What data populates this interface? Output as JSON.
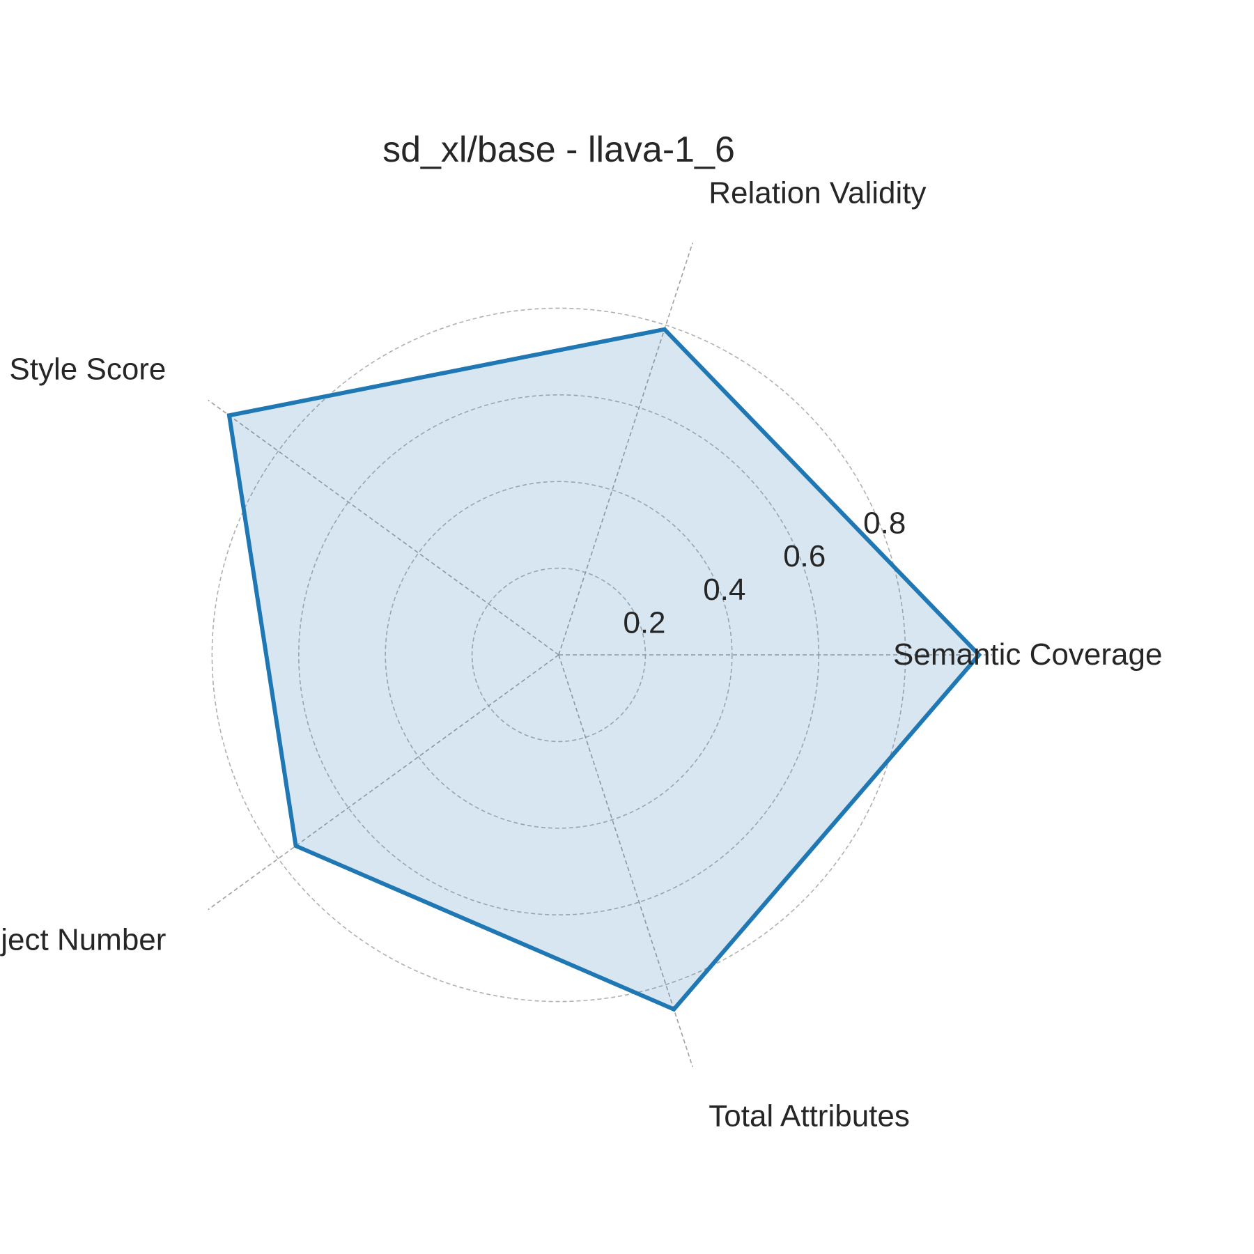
{
  "chart_data": {
    "type": "radar",
    "title": "sd_xl/base - llava-1_6",
    "axes": [
      "Semantic Coverage",
      "Relation Validity",
      "Style Score",
      "Object Number",
      "Total Attributes"
    ],
    "series": [
      {
        "values": [
          0.97,
          0.79,
          0.94,
          0.75,
          0.86
        ],
        "color": "#1f77b4"
      }
    ],
    "rlim": [
      0,
      1.0
    ],
    "r_ticks": [
      0.2,
      0.4,
      0.6,
      0.8
    ],
    "r_tick_labels": [
      "0.2",
      "0.4",
      "0.6",
      "0.8"
    ],
    "grid": true
  }
}
